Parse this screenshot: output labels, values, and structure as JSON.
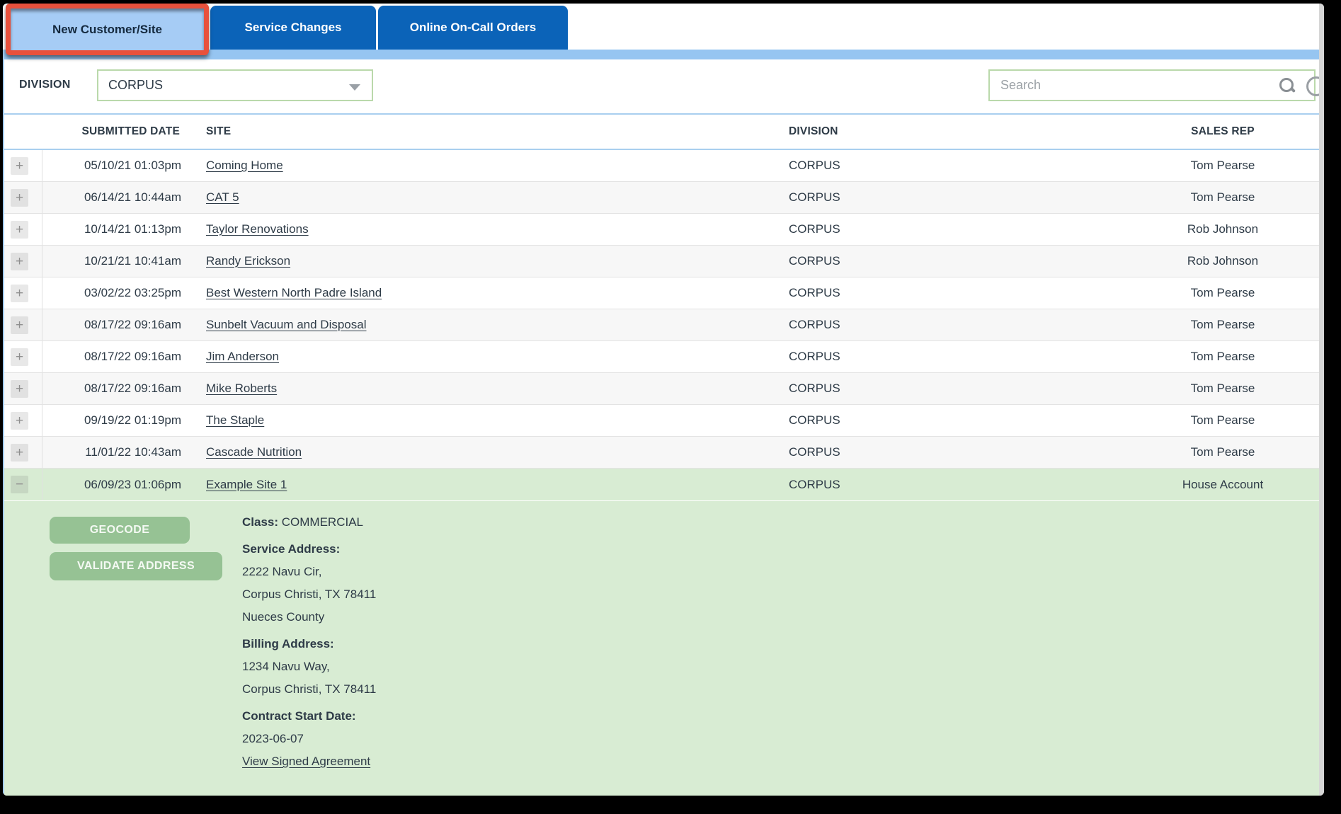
{
  "tabs": [
    {
      "label": "New Customer/Site",
      "active": true,
      "highlighted": true
    },
    {
      "label": "Service Changes",
      "active": false
    },
    {
      "label": "Online On-Call Orders",
      "active": false
    }
  ],
  "toolbar": {
    "division_label": "DIVISION",
    "division_value": "CORPUS",
    "search_placeholder": "Search"
  },
  "icons": {
    "expand_glyph": "+",
    "collapse_glyph": "−",
    "search": "magnifier",
    "dropdown": "chevron-down"
  },
  "table": {
    "headers": {
      "submitted_date": "SUBMITTED DATE",
      "site": "SITE",
      "division": "DIVISION",
      "sales_rep": "SALES REP"
    },
    "rows": [
      {
        "date": "05/10/21 01:03pm",
        "site": "Coming Home",
        "division": "CORPUS",
        "sales_rep": "Tom Pearse",
        "expanded": false
      },
      {
        "date": "06/14/21 10:44am",
        "site": "CAT 5",
        "division": "CORPUS",
        "sales_rep": "Tom Pearse",
        "expanded": false
      },
      {
        "date": "10/14/21 01:13pm",
        "site": "Taylor Renovations",
        "division": "CORPUS",
        "sales_rep": "Rob Johnson",
        "expanded": false
      },
      {
        "date": "10/21/21 10:41am",
        "site": "Randy Erickson",
        "division": "CORPUS",
        "sales_rep": "Rob Johnson",
        "expanded": false
      },
      {
        "date": "03/02/22 03:25pm",
        "site": "Best Western North Padre Island",
        "division": "CORPUS",
        "sales_rep": "Tom Pearse",
        "expanded": false
      },
      {
        "date": "08/17/22 09:16am",
        "site": "Sunbelt Vacuum and Disposal",
        "division": "CORPUS",
        "sales_rep": "Tom Pearse",
        "expanded": false
      },
      {
        "date": "08/17/22 09:16am",
        "site": "Jim Anderson",
        "division": "CORPUS",
        "sales_rep": "Tom Pearse",
        "expanded": false
      },
      {
        "date": "08/17/22 09:16am",
        "site": "Mike Roberts",
        "division": "CORPUS",
        "sales_rep": "Tom Pearse",
        "expanded": false
      },
      {
        "date": "09/19/22 01:19pm",
        "site": "The Staple",
        "division": "CORPUS",
        "sales_rep": "Tom Pearse",
        "expanded": false
      },
      {
        "date": "11/01/22 10:43am",
        "site": "Cascade Nutrition",
        "division": "CORPUS",
        "sales_rep": "Tom Pearse",
        "expanded": false
      },
      {
        "date": "06/09/23 01:06pm",
        "site": "Example Site 1",
        "division": "CORPUS",
        "sales_rep": "House Account",
        "expanded": true
      }
    ]
  },
  "detail": {
    "geocode_button": "GEOCODE",
    "validate_button": "VALIDATE ADDRESS",
    "class_label": "Class:",
    "class_value": "COMMERCIAL",
    "service_address_label": "Service Address:",
    "service_address_lines": [
      "2222 Navu Cir,",
      "Corpus Christi, TX 78411",
      "Nueces County"
    ],
    "billing_address_label": "Billing Address:",
    "billing_address_lines": [
      "1234 Navu Way,",
      "Corpus Christi, TX 78411"
    ],
    "contract_label": "Contract Start Date:",
    "contract_value": "2023-06-07",
    "agreement_link": "View Signed Agreement"
  },
  "colors": {
    "highlight_red": "#e8513c",
    "tab_blue": "#0b63b8",
    "active_tab_bg": "#a6ccf5",
    "strip_blue": "#96c5f1",
    "header_border_blue": "#a9cfef",
    "input_border_green": "#bad9ab",
    "button_green": "#96c294",
    "expanded_row_green": "#d8ecd3",
    "alt_row_gray": "#f7f7f7",
    "text_dark": "#2e3b47"
  }
}
